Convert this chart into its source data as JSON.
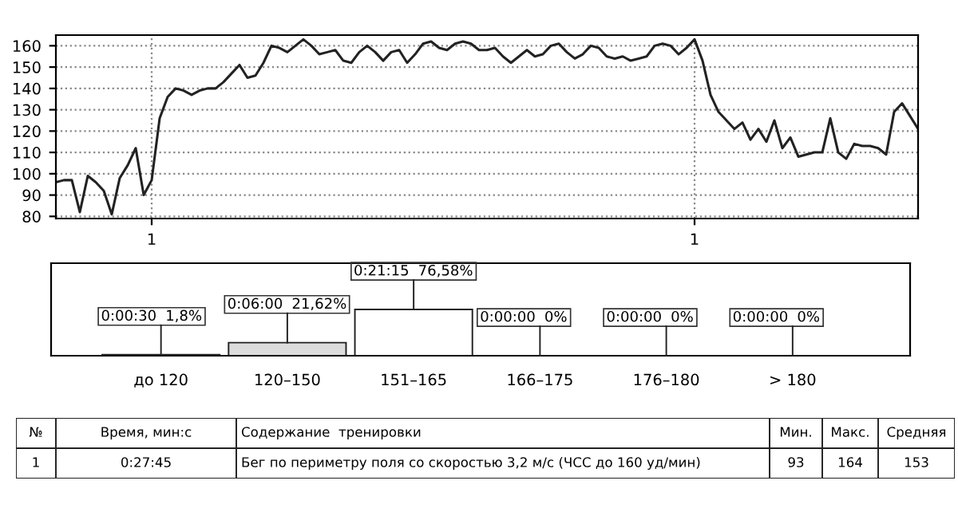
{
  "chart_data": [
    {
      "type": "line",
      "categories": [
        null,
        null,
        null,
        null,
        null,
        null,
        null,
        null,
        null,
        null,
        null,
        null,
        "1",
        null,
        null,
        null,
        null,
        null,
        null,
        null,
        null,
        null,
        null,
        null,
        null,
        null,
        null,
        null,
        null,
        null,
        null,
        null,
        null,
        null,
        null,
        null,
        null,
        null,
        null,
        null,
        null,
        null,
        null,
        null,
        null,
        null,
        null,
        null,
        null,
        null,
        null,
        null,
        null,
        null,
        null,
        null,
        null,
        null,
        null,
        null,
        null,
        null,
        null,
        null,
        null,
        null,
        null,
        null,
        null,
        null,
        null,
        null,
        null,
        null,
        null,
        null,
        null,
        null,
        null,
        null,
        "1",
        null,
        null,
        null,
        null,
        null,
        null,
        null,
        null,
        null,
        null,
        null,
        null,
        null,
        null,
        null,
        null,
        null,
        null,
        null,
        null,
        null,
        null,
        null,
        null,
        null,
        null,
        null,
        null
      ],
      "series": [
        {
          "color": "#222222",
          "values": [
            96,
            97,
            97,
            82,
            99,
            96,
            92,
            81,
            98,
            104,
            112,
            90,
            97,
            126,
            136,
            140,
            139,
            137,
            139,
            140,
            140,
            143,
            147,
            151,
            145,
            146,
            152,
            160,
            159,
            157,
            160,
            163,
            160,
            156,
            157,
            158,
            153,
            152,
            157,
            160,
            157,
            153,
            157,
            158,
            152,
            156,
            161,
            162,
            159,
            158,
            161,
            162,
            161,
            158,
            158,
            159,
            155,
            152,
            155,
            158,
            155,
            156,
            160,
            161,
            157,
            154,
            156,
            160,
            159,
            155,
            154,
            155,
            153,
            154,
            155,
            160,
            161,
            160,
            156,
            159,
            163,
            153,
            137,
            129,
            125,
            121,
            124,
            116,
            121,
            115,
            125,
            112,
            117,
            108,
            109,
            110,
            110,
            126,
            110,
            107,
            114,
            113,
            113,
            112,
            109,
            129,
            133,
            127,
            121
          ]
        }
      ],
      "ylim": [
        79,
        165
      ],
      "yticks": [
        80,
        90,
        100,
        110,
        120,
        130,
        140,
        150,
        160
      ],
      "grid": true,
      "line_style": "solid",
      "marker": "none"
    },
    {
      "type": "bar",
      "categories": [
        "до 120",
        "120–150",
        "151–165",
        "166–175",
        "176–180",
        "> 180"
      ],
      "values": [
        1.8,
        21.62,
        76.58,
        0,
        0,
        0
      ],
      "value_labels": [
        "1,8%",
        "21,62%",
        "76,58%",
        "0%",
        "0%",
        "0%"
      ],
      "annotations": [
        {
          "text": "0:00:30",
          "x": "до 120",
          "y": 1.8
        },
        {
          "text": "0:06:00",
          "x": "120–150",
          "y": 21.62
        },
        {
          "text": "0:21:15",
          "x": "151–165",
          "y": 76.58
        },
        {
          "text": "0:00:00",
          "x": "166–175",
          "y": 0
        },
        {
          "text": "0:00:00",
          "x": "176–180",
          "y": 0
        },
        {
          "text": "0:00:00",
          "x": "> 180",
          "y": 0
        }
      ],
      "colors": [
        "#ffffff",
        "#dcdcdc",
        "#ffffff",
        "#ffffff",
        "#ffffff",
        "#ffffff"
      ]
    },
    {
      "type": "other",
      "categories": [
        "№",
        "Время, мин:с",
        "Содержание  тренировки",
        "Мин.",
        "Макс.",
        "Средняя"
      ],
      "cell_labels": [
        [
          "1",
          "0:27:45",
          "Бег по периметру поля со скоростью 3,2 м/с (ЧСС до 160 уд/мин)",
          "93",
          "164",
          "153"
        ]
      ]
    }
  ]
}
